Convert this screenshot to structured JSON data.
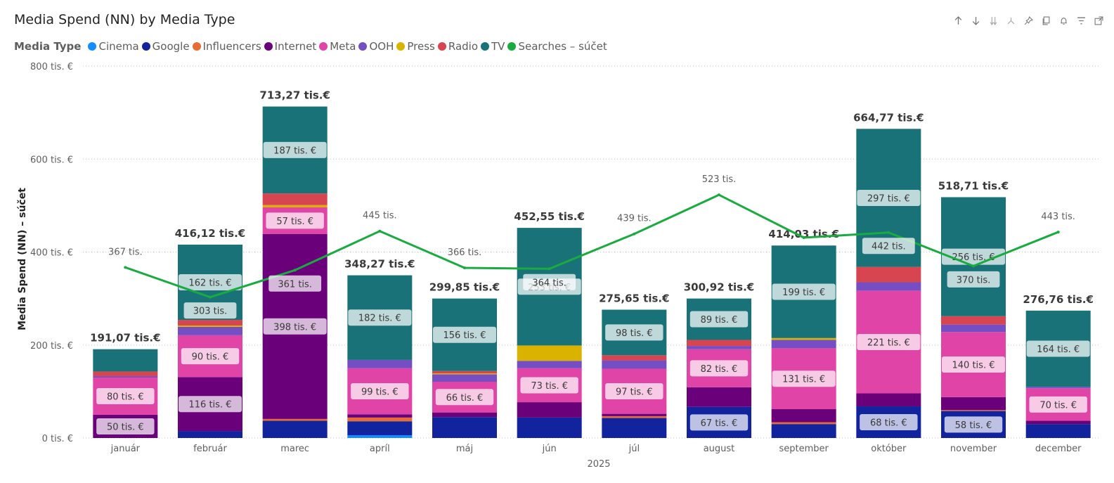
{
  "header": {
    "title": "Media Spend (NN) by Media Type",
    "toolbar": [
      "arrow-up-icon",
      "arrow-down-icon",
      "double-arrow-down-icon",
      "expand-hierarchy-icon",
      "pin-icon",
      "copy-icon",
      "bell-icon",
      "filter-icon",
      "focus-mode-icon"
    ]
  },
  "legend": {
    "title": "Media Type",
    "items": [
      {
        "label": "Cinema",
        "color": "#118DFF"
      },
      {
        "label": "Google",
        "color": "#12239E"
      },
      {
        "label": "Influencers",
        "color": "#E66C37"
      },
      {
        "label": "Internet",
        "color": "#6B007B"
      },
      {
        "label": "Meta",
        "color": "#E044A7"
      },
      {
        "label": "OOH",
        "color": "#744EC2"
      },
      {
        "label": "Press",
        "color": "#D9B300"
      },
      {
        "label": "Radio",
        "color": "#D64550"
      },
      {
        "label": "TV",
        "color": "#197278"
      },
      {
        "label": "Searches – súčet",
        "color": "#1AAB40"
      }
    ]
  },
  "chart_data": {
    "type": "bar",
    "stacked": true,
    "categories": [
      "január",
      "február",
      "marec",
      "apríl",
      "máj",
      "jún",
      "júl",
      "august",
      "september",
      "október",
      "november",
      "december"
    ],
    "xlabel": "2025",
    "ylabel": "Media Spend (NN) – súčet",
    "ylim": [
      0,
      800
    ],
    "yticks": [
      0,
      200,
      400,
      600,
      800
    ],
    "ytick_labels": [
      "0 tis. €",
      "200 tis. €",
      "400 tis. €",
      "600 tis. €",
      "800 tis. €"
    ],
    "grid": true,
    "totals": [
      "191,07 tis.€",
      "416,12 tis.€",
      "713,27 tis.€",
      "348,27 tis.€",
      "299,85 tis.€",
      "452,55 tis.€",
      "275,65 tis.€",
      "300,92 tis.€",
      "414,03 tis.€",
      "664,77 tis.€",
      "518,71 tis.€",
      "276,76 tis.€"
    ],
    "series": [
      {
        "name": "Cinema",
        "color": "#118DFF",
        "values": [
          0,
          0,
          0,
          6,
          0,
          0,
          0,
          0,
          0,
          0,
          0,
          0
        ]
      },
      {
        "name": "Google",
        "color": "#12239E",
        "values": [
          0,
          15,
          37,
          30,
          45,
          44,
          43,
          67,
          30,
          68,
          58,
          30
        ],
        "labels": [
          "",
          "",
          "",
          "",
          "",
          "",
          "",
          "67 tis. €",
          "",
          "68 tis. €",
          "58 tis. €",
          ""
        ]
      },
      {
        "name": "Influencers",
        "color": "#E66C37",
        "values": [
          0,
          0,
          4,
          8,
          0,
          0,
          4,
          0,
          4,
          0,
          2,
          0
        ]
      },
      {
        "name": "Internet",
        "color": "#6B007B",
        "values": [
          50,
          116,
          398,
          7,
          10,
          33,
          5,
          42,
          28,
          28,
          28,
          7
        ],
        "labels": [
          "50 tis. €",
          "116 tis. €",
          "398 tis. €",
          "",
          "",
          "",
          "",
          "",
          "",
          "",
          "",
          ""
        ]
      },
      {
        "name": "Meta",
        "color": "#E044A7",
        "values": [
          80,
          90,
          57,
          99,
          66,
          73,
          97,
          82,
          131,
          221,
          140,
          70
        ],
        "labels": [
          "80 tis. €",
          "90 tis. €",
          "57 tis. €",
          "99 tis. €",
          "66 tis. €",
          "73 tis. €",
          "97 tis. €",
          "82 tis. €",
          "131 tis. €",
          "221 tis. €",
          "140 tis. €",
          "70 tis. €"
        ]
      },
      {
        "name": "OOH",
        "color": "#744EC2",
        "values": [
          3,
          18,
          0,
          18,
          16,
          16,
          18,
          7,
          18,
          18,
          16,
          3
        ]
      },
      {
        "name": "Press",
        "color": "#D9B300",
        "values": [
          0,
          3,
          5,
          0,
          2,
          33,
          0,
          0,
          4,
          0,
          0,
          0
        ]
      },
      {
        "name": "Radio",
        "color": "#D64550",
        "values": [
          10,
          12,
          25,
          0,
          5,
          0,
          11,
          13,
          0,
          33,
          18,
          0
        ]
      },
      {
        "name": "TV",
        "color": "#197278",
        "values": [
          48,
          162,
          187,
          182,
          156,
          253,
          98,
          89,
          199,
          297,
          256,
          164
        ],
        "labels": [
          "",
          "162 tis. €",
          "187 tis. €",
          "182 tis. €",
          "156 tis. €",
          "253 tis. €",
          "98 tis. €",
          "89 tis. €",
          "199 tis. €",
          "297 tis. €",
          "256 tis. €",
          "164 tis. €"
        ]
      }
    ],
    "line_series": {
      "name": "Searches – súčet",
      "color": "#1AAB40",
      "values": [
        367,
        303,
        361,
        445,
        366,
        364,
        439,
        523,
        431,
        442,
        370,
        443
      ],
      "labels": [
        "367 tis.",
        "303 tis.",
        "361 tis.",
        "445 tis.",
        "366 tis.",
        "364 tis.",
        "439 tis.",
        "523 tis.",
        "",
        "442 tis.",
        "370 tis.",
        "443 tis."
      ]
    }
  }
}
